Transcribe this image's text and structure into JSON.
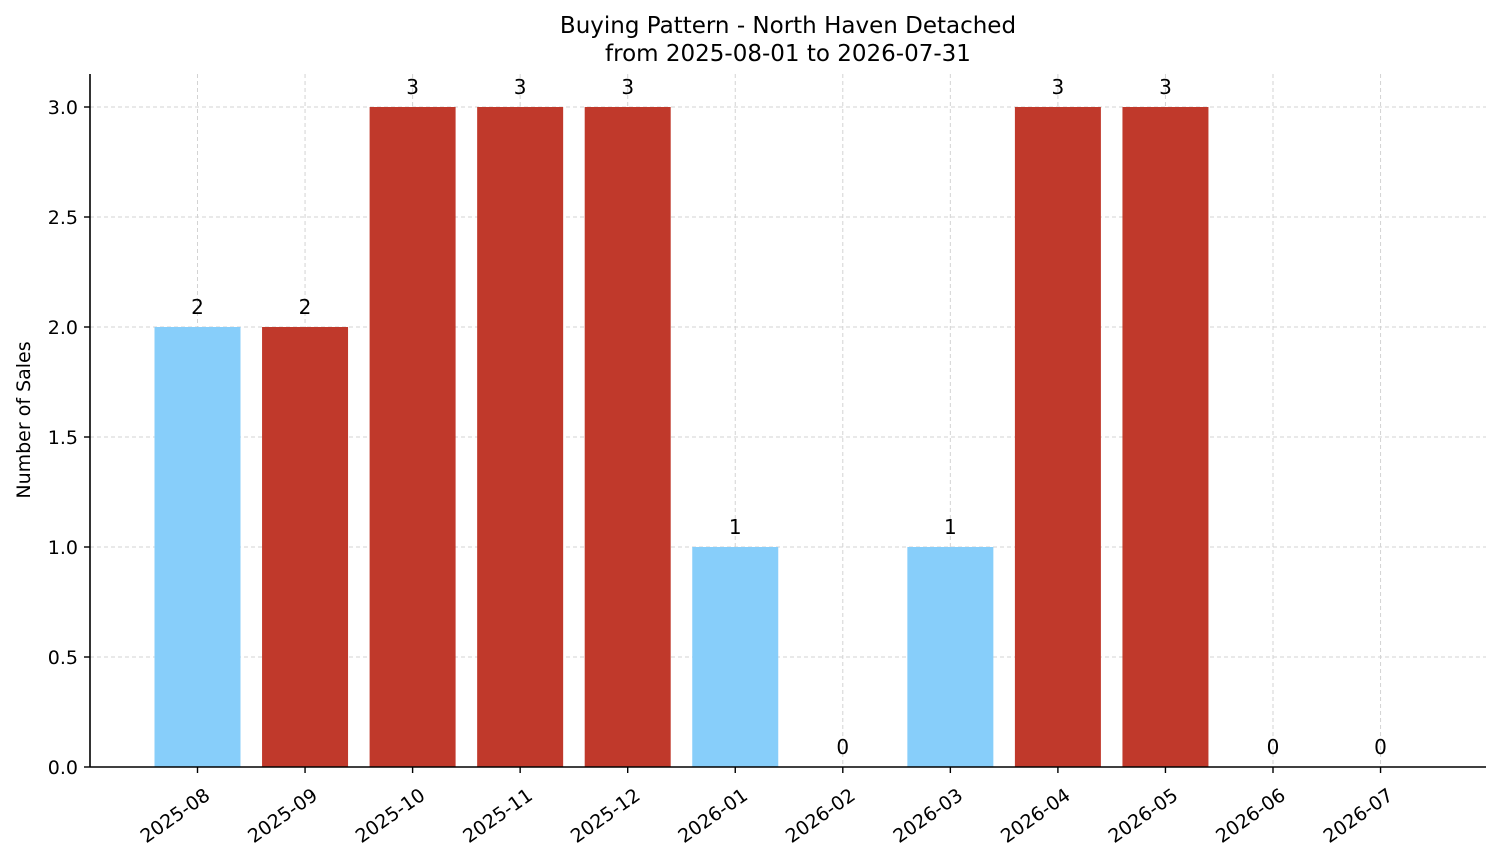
{
  "chart_data": {
    "type": "bar",
    "title_line1": "Buying Pattern - North Haven Detached",
    "title_line2": "from 2025-08-01 to 2026-07-31",
    "xlabel": "",
    "ylabel": "Number of Sales",
    "categories": [
      "2025-08",
      "2025-09",
      "2025-10",
      "2025-11",
      "2025-12",
      "2026-01",
      "2026-02",
      "2026-03",
      "2026-04",
      "2026-05",
      "2026-06",
      "2026-07"
    ],
    "values": [
      2,
      2,
      3,
      3,
      3,
      1,
      0,
      1,
      3,
      3,
      0,
      0
    ],
    "data_labels": [
      "2",
      "2",
      "3",
      "3",
      "3",
      "1",
      "0",
      "1",
      "3",
      "3",
      "0",
      "0"
    ],
    "bar_colors": [
      "#87cefa",
      "#c0392b",
      "#c0392b",
      "#c0392b",
      "#c0392b",
      "#87cefa",
      "#c0392b",
      "#87cefa",
      "#c0392b",
      "#c0392b",
      "#c0392b",
      "#c0392b"
    ],
    "ylim": [
      0,
      3.15
    ],
    "yticks": [
      0,
      0.5,
      1,
      1.5,
      2,
      2.5,
      3
    ],
    "ytick_labels": [
      "0.0",
      "0.5",
      "1.0",
      "1.5",
      "2.0",
      "2.5",
      "3.0"
    ],
    "grid": true,
    "legend": "none"
  }
}
